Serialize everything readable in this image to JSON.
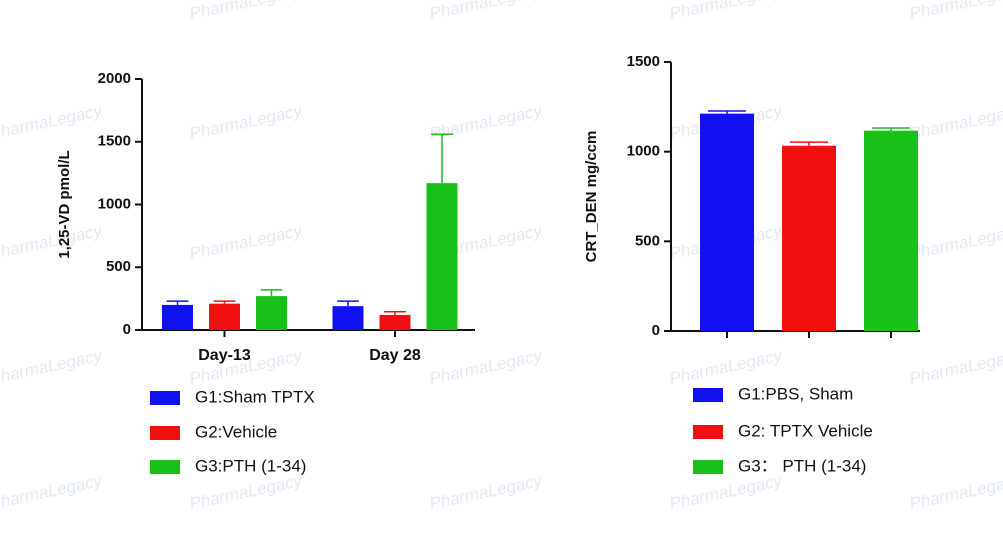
{
  "watermark": "PharmaLegacy",
  "chart_data": [
    {
      "type": "bar",
      "ylabel": "1,25-VD pmol/L",
      "categories": [
        "Day-13",
        "Day 28"
      ],
      "series": [
        {
          "name": "G1:Sham TPTX",
          "color": "#1010f0",
          "values": [
            200,
            190
          ],
          "errors": [
            30,
            40
          ]
        },
        {
          "name": "G2:Vehicle",
          "color": "#f01010",
          "values": [
            210,
            120
          ],
          "errors": [
            20,
            25
          ]
        },
        {
          "name": "G3:PTH (1-34)",
          "color": "#18c018",
          "values": [
            270,
            1170
          ],
          "errors": [
            50,
            390
          ]
        }
      ],
      "ylim": [
        0,
        2000
      ],
      "yticks": [
        0,
        500,
        1000,
        1500,
        2000
      ]
    },
    {
      "type": "bar",
      "ylabel": "CRT_DEN mg/ccm",
      "categories": [
        null
      ],
      "series": [
        {
          "name": "G1:PBS, Sham",
          "color": "#1010f0",
          "values": [
            1212
          ],
          "errors": [
            15
          ]
        },
        {
          "name": "G2: TPTX Vehicle",
          "color": "#f01010",
          "values": [
            1033
          ],
          "errors": [
            20
          ]
        },
        {
          "name": "G3： PTH (1-34)",
          "color": "#18c018",
          "values": [
            1117
          ],
          "errors": [
            15
          ]
        }
      ],
      "ylim": [
        0,
        1500
      ],
      "yticks": [
        0,
        500,
        1000,
        1500
      ]
    }
  ]
}
